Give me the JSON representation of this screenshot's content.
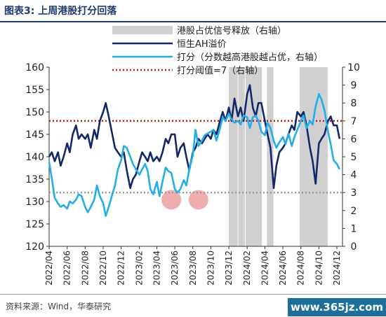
{
  "title": "图表3:  上周港股打分回落",
  "source": "资料来源：Wind，华泰研究",
  "watermark": "www.365jz.com",
  "chart_data": {
    "type": "line",
    "x_tick_labels": [
      "2022/04",
      "2022/06",
      "2022/08",
      "2022/10",
      "2022/12",
      "2023/02",
      "2023/04",
      "2023/06",
      "2023/08",
      "2023/10",
      "2023/12",
      "2024/02",
      "2024/04",
      "2024/06",
      "2024/08",
      "2024/10",
      "2024/12"
    ],
    "x_range": [
      "2022/04",
      "2024/12"
    ],
    "ylim_left": [
      120,
      160
    ],
    "yticks_left": [
      120,
      125,
      130,
      135,
      140,
      145,
      150,
      155,
      160
    ],
    "ylim_right": [
      0,
      10
    ],
    "yticks_right": [
      0,
      1,
      2,
      3,
      4,
      5,
      6,
      7,
      8,
      9,
      10
    ],
    "legend": [
      {
        "name": "港股占优信号释放（右轴）",
        "style": "band",
        "color": "#d0d0d0"
      },
      {
        "name": "恒生AH溢价",
        "style": "line",
        "color": "#14276b"
      },
      {
        "name": "打分（分数越高港股越占优，右轴）",
        "style": "line",
        "color": "#22aee8"
      },
      {
        "name": "打分阈值=7（右轴）",
        "style": "dotted",
        "color": "#cc1515"
      }
    ],
    "threshold_high": 7,
    "threshold_low": 3,
    "signal_periods": [
      [
        "2023-12-01",
        "2023-12-31"
      ],
      [
        "2024-01-02",
        "2024-01-24"
      ],
      [
        "2024-01-27",
        "2024-03-22"
      ],
      [
        "2024-04-08",
        "2024-04-30"
      ],
      [
        "2024-07-28",
        "2024-10-31"
      ]
    ],
    "highlights": [
      {
        "x": "2023-05-20",
        "y_right": 2.6
      },
      {
        "x": "2023-08-20",
        "y_right": 2.6
      }
    ],
    "colors": {
      "ah_premium": "#14276b",
      "score": "#22aee8",
      "threshold_high": "#cc1515",
      "threshold_low": "#999999",
      "signal_band": "#d0d0d0",
      "highlight": "#e88a8e"
    },
    "series": [
      {
        "name": "恒生AH溢价",
        "axis": "left",
        "points": [
          [
            "2022-04-01",
            140
          ],
          [
            "2022-04-10",
            141
          ],
          [
            "2022-04-20",
            139
          ],
          [
            "2022-05-01",
            141
          ],
          [
            "2022-05-10",
            138
          ],
          [
            "2022-05-20",
            140
          ],
          [
            "2022-06-01",
            143
          ],
          [
            "2022-06-10",
            141
          ],
          [
            "2022-06-20",
            145
          ],
          [
            "2022-07-01",
            147
          ],
          [
            "2022-07-10",
            144
          ],
          [
            "2022-07-20",
            145
          ],
          [
            "2022-08-01",
            144
          ],
          [
            "2022-08-10",
            145
          ],
          [
            "2022-08-20",
            142
          ],
          [
            "2022-09-01",
            146
          ],
          [
            "2022-09-10",
            144
          ],
          [
            "2022-09-20",
            148
          ],
          [
            "2022-10-01",
            150
          ],
          [
            "2022-10-10",
            152
          ],
          [
            "2022-10-20",
            149
          ],
          [
            "2022-11-01",
            145
          ],
          [
            "2022-11-10",
            142
          ],
          [
            "2022-11-20",
            141
          ],
          [
            "2022-12-01",
            140
          ],
          [
            "2022-12-10",
            141
          ],
          [
            "2022-12-20",
            137
          ],
          [
            "2023-01-01",
            133
          ],
          [
            "2023-01-10",
            135
          ],
          [
            "2023-01-20",
            136
          ],
          [
            "2023-02-01",
            139
          ],
          [
            "2023-02-10",
            141
          ],
          [
            "2023-02-20",
            140
          ],
          [
            "2023-03-01",
            139
          ],
          [
            "2023-03-10",
            141
          ],
          [
            "2023-03-20",
            139
          ],
          [
            "2023-04-01",
            140
          ],
          [
            "2023-04-10",
            139
          ],
          [
            "2023-04-20",
            141
          ],
          [
            "2023-05-01",
            144
          ],
          [
            "2023-05-10",
            143
          ],
          [
            "2023-05-20",
            145
          ],
          [
            "2023-06-01",
            145
          ],
          [
            "2023-06-10",
            140
          ],
          [
            "2023-06-20",
            142
          ],
          [
            "2023-07-01",
            143
          ],
          [
            "2023-07-10",
            140
          ],
          [
            "2023-07-20",
            137
          ],
          [
            "2023-08-01",
            141
          ],
          [
            "2023-08-10",
            142
          ],
          [
            "2023-08-20",
            144
          ],
          [
            "2023-09-01",
            143
          ],
          [
            "2023-09-10",
            144
          ],
          [
            "2023-09-20",
            145
          ],
          [
            "2023-10-01",
            144
          ],
          [
            "2023-10-10",
            146
          ],
          [
            "2023-10-20",
            145
          ],
          [
            "2023-11-01",
            148
          ],
          [
            "2023-11-10",
            150
          ],
          [
            "2023-11-20",
            148
          ],
          [
            "2023-12-01",
            151
          ],
          [
            "2023-12-10",
            148
          ],
          [
            "2023-12-20",
            153
          ],
          [
            "2024-01-01",
            149
          ],
          [
            "2024-01-10",
            151
          ],
          [
            "2024-01-20",
            148
          ],
          [
            "2024-02-01",
            154
          ],
          [
            "2024-02-10",
            156
          ],
          [
            "2024-02-20",
            151
          ],
          [
            "2024-03-01",
            149
          ],
          [
            "2024-03-10",
            152
          ],
          [
            "2024-03-20",
            152
          ],
          [
            "2024-04-01",
            148
          ],
          [
            "2024-04-10",
            145
          ],
          [
            "2024-04-20",
            142
          ],
          [
            "2024-05-01",
            133
          ],
          [
            "2024-05-10",
            138
          ],
          [
            "2024-05-20",
            141
          ],
          [
            "2024-06-01",
            142
          ],
          [
            "2024-06-10",
            143
          ],
          [
            "2024-06-20",
            145
          ],
          [
            "2024-07-01",
            147
          ],
          [
            "2024-07-10",
            146
          ],
          [
            "2024-07-20",
            150
          ],
          [
            "2024-08-01",
            149
          ],
          [
            "2024-08-10",
            150
          ],
          [
            "2024-08-20",
            147
          ],
          [
            "2024-09-01",
            142
          ],
          [
            "2024-09-10",
            139
          ],
          [
            "2024-09-20",
            134
          ],
          [
            "2024-10-01",
            143
          ],
          [
            "2024-10-10",
            144
          ],
          [
            "2024-10-20",
            145
          ],
          [
            "2024-11-01",
            148
          ],
          [
            "2024-11-10",
            149
          ],
          [
            "2024-11-20",
            147
          ],
          [
            "2024-12-01",
            147
          ],
          [
            "2024-12-10",
            144
          ]
        ]
      },
      {
        "name": "打分",
        "axis": "right",
        "points": [
          [
            "2022-04-01",
            4.7
          ],
          [
            "2022-04-10",
            3.8
          ],
          [
            "2022-04-20",
            2.7
          ],
          [
            "2022-05-01",
            2.4
          ],
          [
            "2022-05-10",
            2.2
          ],
          [
            "2022-05-20",
            2.3
          ],
          [
            "2022-06-01",
            2.1
          ],
          [
            "2022-06-10",
            2.5
          ],
          [
            "2022-06-20",
            2.4
          ],
          [
            "2022-07-01",
            2.6
          ],
          [
            "2022-07-10",
            2.9
          ],
          [
            "2022-07-20",
            2.8
          ],
          [
            "2022-08-01",
            2.2
          ],
          [
            "2022-08-10",
            1.9
          ],
          [
            "2022-08-20",
            2.2
          ],
          [
            "2022-09-01",
            2.6
          ],
          [
            "2022-09-10",
            3.4
          ],
          [
            "2022-09-20",
            2.8
          ],
          [
            "2022-10-01",
            2.4
          ],
          [
            "2022-10-10",
            1.7
          ],
          [
            "2022-10-20",
            2.2
          ],
          [
            "2022-11-01",
            2.9
          ],
          [
            "2022-11-10",
            3.4
          ],
          [
            "2022-11-20",
            4.3
          ],
          [
            "2022-12-01",
            4.8
          ],
          [
            "2022-12-10",
            5.6
          ],
          [
            "2022-12-20",
            5.5
          ],
          [
            "2023-01-01",
            5.0
          ],
          [
            "2023-01-10",
            4.6
          ],
          [
            "2023-01-20",
            4.3
          ],
          [
            "2023-02-01",
            4.0
          ],
          [
            "2023-02-10",
            4.3
          ],
          [
            "2023-02-20",
            4.6
          ],
          [
            "2023-03-01",
            4.2
          ],
          [
            "2023-03-10",
            3.2
          ],
          [
            "2023-03-20",
            2.9
          ],
          [
            "2023-04-01",
            3.6
          ],
          [
            "2023-04-10",
            2.8
          ],
          [
            "2023-04-20",
            3.6
          ],
          [
            "2023-05-01",
            4.4
          ],
          [
            "2023-05-10",
            4.2
          ],
          [
            "2023-05-20",
            4.1
          ],
          [
            "2023-06-01",
            3.2
          ],
          [
            "2023-06-10",
            3.0
          ],
          [
            "2023-06-20",
            3.2
          ],
          [
            "2023-07-01",
            3.7
          ],
          [
            "2023-07-10",
            3.4
          ],
          [
            "2023-07-20",
            4.3
          ],
          [
            "2023-08-01",
            5.1
          ],
          [
            "2023-08-10",
            6.5
          ],
          [
            "2023-08-20",
            5.6
          ],
          [
            "2023-09-01",
            5.9
          ],
          [
            "2023-09-10",
            6.2
          ],
          [
            "2023-09-20",
            6.3
          ],
          [
            "2023-10-01",
            6.4
          ],
          [
            "2023-10-10",
            6.5
          ],
          [
            "2023-10-20",
            5.9
          ],
          [
            "2023-11-01",
            6.6
          ],
          [
            "2023-11-10",
            7.2
          ],
          [
            "2023-11-20",
            7.0
          ],
          [
            "2023-12-01",
            7.4
          ],
          [
            "2023-12-10",
            7.1
          ],
          [
            "2023-12-20",
            6.9
          ],
          [
            "2024-01-01",
            7.0
          ],
          [
            "2024-01-10",
            6.8
          ],
          [
            "2024-01-20",
            7.3
          ],
          [
            "2024-02-01",
            7.2
          ],
          [
            "2024-02-10",
            6.6
          ],
          [
            "2024-02-20",
            7.2
          ],
          [
            "2024-03-01",
            7.3
          ],
          [
            "2024-03-10",
            7.0
          ],
          [
            "2024-03-20",
            6.4
          ],
          [
            "2024-04-01",
            6.2
          ],
          [
            "2024-04-10",
            6.9
          ],
          [
            "2024-04-20",
            6.6
          ],
          [
            "2024-05-01",
            5.9
          ],
          [
            "2024-05-10",
            5.5
          ],
          [
            "2024-05-20",
            5.8
          ],
          [
            "2024-06-01",
            6.1
          ],
          [
            "2024-06-10",
            5.7
          ],
          [
            "2024-06-20",
            6.3
          ],
          [
            "2024-07-01",
            5.6
          ],
          [
            "2024-07-10",
            6.1
          ],
          [
            "2024-07-20",
            6.5
          ],
          [
            "2024-08-01",
            7.0
          ],
          [
            "2024-08-10",
            7.3
          ],
          [
            "2024-08-20",
            6.6
          ],
          [
            "2024-09-01",
            7.0
          ],
          [
            "2024-09-10",
            6.8
          ],
          [
            "2024-09-20",
            7.8
          ],
          [
            "2024-10-01",
            8.5
          ],
          [
            "2024-10-10",
            8.2
          ],
          [
            "2024-10-20",
            7.6
          ],
          [
            "2024-11-01",
            6.4
          ],
          [
            "2024-11-10",
            5.7
          ],
          [
            "2024-11-20",
            4.8
          ],
          [
            "2024-12-01",
            4.6
          ],
          [
            "2024-12-10",
            4.3
          ]
        ]
      }
    ]
  }
}
